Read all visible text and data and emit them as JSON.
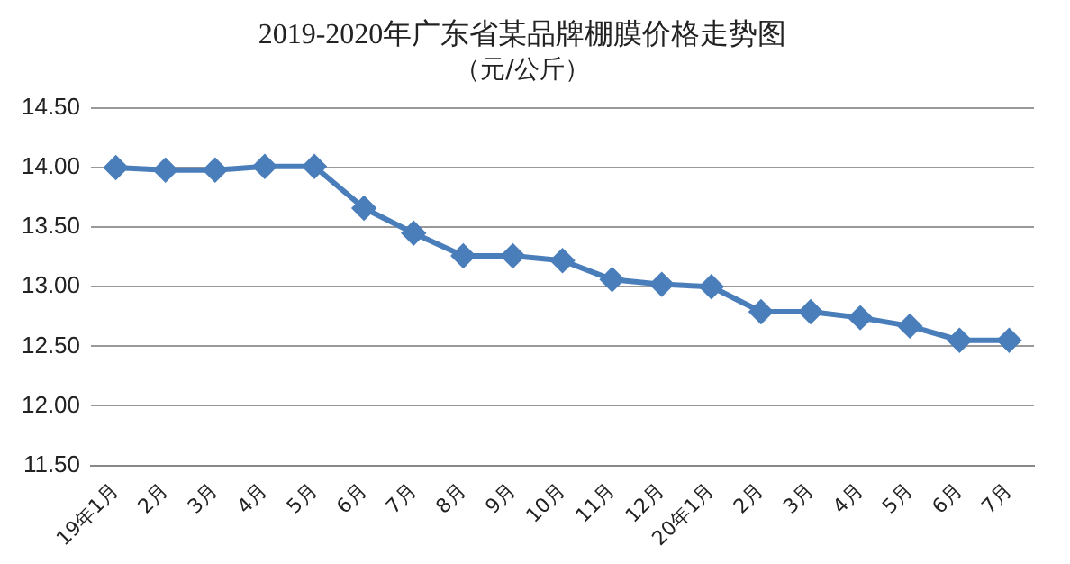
{
  "chart_data": {
    "type": "line",
    "title": "2019-2020年广东省某品牌棚膜价格走势图",
    "subtitle": "（元/公斤）",
    "categories": [
      "19年1月",
      "2月",
      "3月",
      "4月",
      "5月",
      "6月",
      "7月",
      "8月",
      "9月",
      "10月",
      "11月",
      "12月",
      "20年1月",
      "2月",
      "3月",
      "4月",
      "5月",
      "6月",
      "7月"
    ],
    "series": [
      {
        "color": "#4a7ebb",
        "values": [
          14.0,
          13.98,
          13.98,
          14.01,
          14.01,
          13.66,
          13.45,
          13.26,
          13.26,
          13.22,
          13.06,
          13.02,
          13.0,
          12.79,
          12.79,
          12.74,
          12.67,
          12.55,
          12.55
        ]
      }
    ],
    "ylim": [
      11.5,
      14.5
    ],
    "yticks": [
      {
        "value": 11.5,
        "label": "11.50"
      },
      {
        "value": 12,
        "label": "12.00"
      },
      {
        "value": 12.5,
        "label": "12.50"
      },
      {
        "value": 13,
        "label": "13.00"
      },
      {
        "value": 13.5,
        "label": "13.50"
      },
      {
        "value": 14,
        "label": "14.00"
      },
      {
        "value": 14.5,
        "label": "14.50"
      }
    ],
    "grid": "y",
    "marker": "diamond",
    "line_style": "solid",
    "legend": false
  }
}
